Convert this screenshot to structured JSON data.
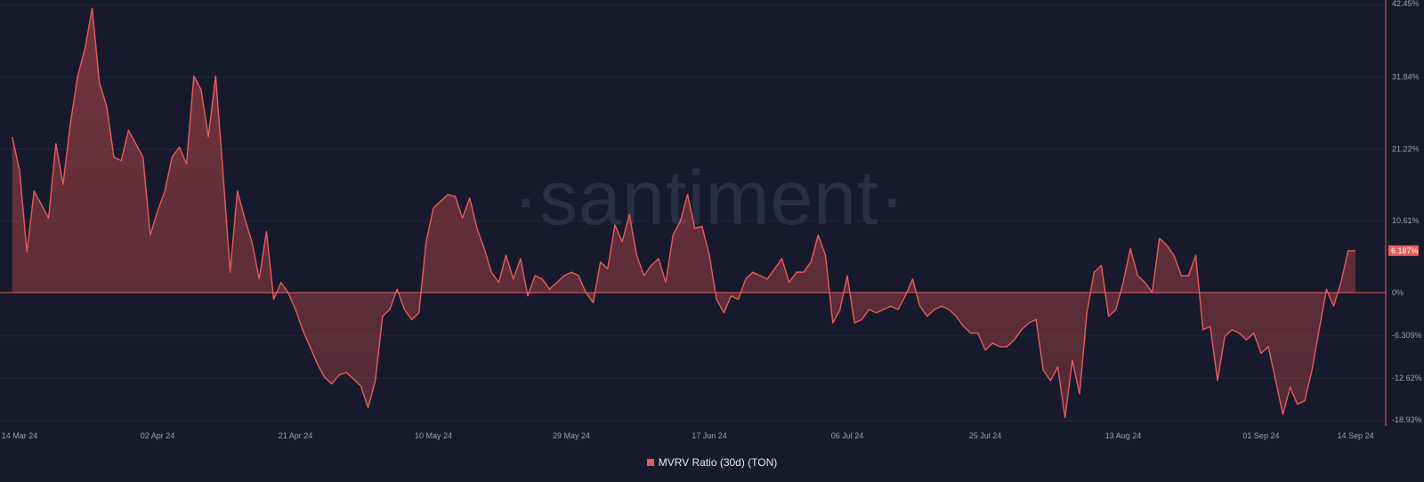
{
  "brand": {
    "watermark": "·santiment·"
  },
  "chart_data": {
    "type": "area",
    "title": "",
    "xlabel": "",
    "ylabel": "",
    "ylim": [
      -18.93,
      42.45
    ],
    "yticks": [
      "42.45%",
      "31.84%",
      "21.22%",
      "10.61%",
      "0%",
      "-6.309%",
      "-12.62%",
      "-18.93%"
    ],
    "ytick_values": [
      42.45,
      31.84,
      21.22,
      10.61,
      0,
      -6.309,
      -12.62,
      -18.93
    ],
    "xticks": [
      "14 Mar 24",
      "02 Apr 24",
      "21 Apr 24",
      "10 May 24",
      "29 May 24",
      "17 Jun 24",
      "06 Jul 24",
      "25 Jul 24",
      "13 Aug 24",
      "01 Sep 24",
      "14 Sep 24"
    ],
    "xtick_dates": [
      "2024-03-14",
      "2024-04-02",
      "2024-04-21",
      "2024-05-10",
      "2024-05-29",
      "2024-06-17",
      "2024-07-06",
      "2024-07-25",
      "2024-08-13",
      "2024-09-01",
      "2024-09-14"
    ],
    "x_start": "2024-03-14",
    "x_end": "2024-09-14",
    "current_value_label": "6.187%",
    "legend": {
      "position": "bottom-center"
    },
    "series": [
      {
        "name": "MVRV Ratio (30d) (TON)",
        "color": "#e85c5c",
        "points": [
          [
            "2024-03-13",
            23.0
          ],
          [
            "2024-03-14",
            18.0
          ],
          [
            "2024-03-15",
            6.0
          ],
          [
            "2024-03-16",
            15.0
          ],
          [
            "2024-03-17",
            13.0
          ],
          [
            "2024-03-18",
            11.0
          ],
          [
            "2024-03-19",
            22.0
          ],
          [
            "2024-03-20",
            16.0
          ],
          [
            "2024-03-21",
            25.0
          ],
          [
            "2024-03-22",
            32.0
          ],
          [
            "2024-03-23",
            36.0
          ],
          [
            "2024-03-24",
            42.0
          ],
          [
            "2024-03-25",
            31.0
          ],
          [
            "2024-03-26",
            27.5
          ],
          [
            "2024-03-27",
            20.0
          ],
          [
            "2024-03-28",
            19.5
          ],
          [
            "2024-03-29",
            24.0
          ],
          [
            "2024-03-30",
            22.0
          ],
          [
            "2024-03-31",
            20.0
          ],
          [
            "2024-04-01",
            8.5
          ],
          [
            "2024-04-02",
            12.0
          ],
          [
            "2024-04-03",
            15.0
          ],
          [
            "2024-04-04",
            20.0
          ],
          [
            "2024-04-05",
            21.5
          ],
          [
            "2024-04-06",
            19.0
          ],
          [
            "2024-04-07",
            32.0
          ],
          [
            "2024-04-08",
            30.0
          ],
          [
            "2024-04-09",
            23.0
          ],
          [
            "2024-04-10",
            32.0
          ],
          [
            "2024-04-11",
            18.0
          ],
          [
            "2024-04-12",
            3.0
          ],
          [
            "2024-04-13",
            15.0
          ],
          [
            "2024-04-14",
            11.0
          ],
          [
            "2024-04-15",
            7.5
          ],
          [
            "2024-04-16",
            2.0
          ],
          [
            "2024-04-17",
            9.0
          ],
          [
            "2024-04-18",
            -1.0
          ],
          [
            "2024-04-19",
            1.5
          ],
          [
            "2024-04-20",
            0.0
          ],
          [
            "2024-04-21",
            -2.5
          ],
          [
            "2024-04-22",
            -5.5
          ],
          [
            "2024-04-23",
            -8.0
          ],
          [
            "2024-04-24",
            -10.5
          ],
          [
            "2024-04-25",
            -12.5
          ],
          [
            "2024-04-26",
            -13.5
          ],
          [
            "2024-04-27",
            -12.2
          ],
          [
            "2024-04-28",
            -11.8
          ],
          [
            "2024-04-29",
            -12.8
          ],
          [
            "2024-04-30",
            -13.8
          ],
          [
            "2024-05-01",
            -17.0
          ],
          [
            "2024-05-02",
            -13.0
          ],
          [
            "2024-05-03",
            -3.5
          ],
          [
            "2024-05-04",
            -2.5
          ],
          [
            "2024-05-05",
            0.5
          ],
          [
            "2024-05-06",
            -2.5
          ],
          [
            "2024-05-07",
            -4.0
          ],
          [
            "2024-05-08",
            -3.0
          ],
          [
            "2024-05-09",
            7.5
          ],
          [
            "2024-05-10",
            12.5
          ],
          [
            "2024-05-11",
            13.5
          ],
          [
            "2024-05-12",
            14.5
          ],
          [
            "2024-05-13",
            14.2
          ],
          [
            "2024-05-14",
            11.0
          ],
          [
            "2024-05-15",
            14.0
          ],
          [
            "2024-05-16",
            9.5
          ],
          [
            "2024-05-17",
            6.5
          ],
          [
            "2024-05-18",
            3.0
          ],
          [
            "2024-05-19",
            1.5
          ],
          [
            "2024-05-20",
            5.5
          ],
          [
            "2024-05-21",
            2.0
          ],
          [
            "2024-05-22",
            5.0
          ],
          [
            "2024-05-23",
            -0.5
          ],
          [
            "2024-05-24",
            2.5
          ],
          [
            "2024-05-25",
            2.0
          ],
          [
            "2024-05-26",
            0.5
          ],
          [
            "2024-05-27",
            1.5
          ],
          [
            "2024-05-28",
            2.5
          ],
          [
            "2024-05-29",
            3.0
          ],
          [
            "2024-05-30",
            2.5
          ],
          [
            "2024-05-31",
            0.0
          ],
          [
            "2024-06-01",
            -1.5
          ],
          [
            "2024-06-02",
            4.5
          ],
          [
            "2024-06-03",
            3.5
          ],
          [
            "2024-06-04",
            10.0
          ],
          [
            "2024-06-05",
            7.5
          ],
          [
            "2024-06-06",
            11.5
          ],
          [
            "2024-06-07",
            5.5
          ],
          [
            "2024-06-08",
            2.5
          ],
          [
            "2024-06-09",
            4.0
          ],
          [
            "2024-06-10",
            5.0
          ],
          [
            "2024-06-11",
            1.5
          ],
          [
            "2024-06-12",
            8.5
          ],
          [
            "2024-06-13",
            10.5
          ],
          [
            "2024-06-14",
            14.5
          ],
          [
            "2024-06-15",
            9.5
          ],
          [
            "2024-06-16",
            9.8
          ],
          [
            "2024-06-17",
            5.5
          ],
          [
            "2024-06-18",
            -1.0
          ],
          [
            "2024-06-19",
            -3.0
          ],
          [
            "2024-06-20",
            -0.5
          ],
          [
            "2024-06-21",
            -1.0
          ],
          [
            "2024-06-22",
            2.0
          ],
          [
            "2024-06-23",
            3.0
          ],
          [
            "2024-06-24",
            2.5
          ],
          [
            "2024-06-25",
            2.0
          ],
          [
            "2024-06-26",
            3.5
          ],
          [
            "2024-06-27",
            5.0
          ],
          [
            "2024-06-28",
            1.5
          ],
          [
            "2024-06-29",
            3.0
          ],
          [
            "2024-06-30",
            3.0
          ],
          [
            "2024-07-01",
            4.5
          ],
          [
            "2024-07-02",
            8.5
          ],
          [
            "2024-07-03",
            5.5
          ],
          [
            "2024-07-04",
            -4.5
          ],
          [
            "2024-07-05",
            -2.5
          ],
          [
            "2024-07-06",
            2.5
          ],
          [
            "2024-07-07",
            -4.5
          ],
          [
            "2024-07-08",
            -4.0
          ],
          [
            "2024-07-09",
            -2.5
          ],
          [
            "2024-07-10",
            -3.0
          ],
          [
            "2024-07-11",
            -2.5
          ],
          [
            "2024-07-12",
            -2.0
          ],
          [
            "2024-07-13",
            -2.5
          ],
          [
            "2024-07-14",
            -0.5
          ],
          [
            "2024-07-15",
            2.0
          ],
          [
            "2024-07-16",
            -2.0
          ],
          [
            "2024-07-17",
            -3.5
          ],
          [
            "2024-07-18",
            -2.5
          ],
          [
            "2024-07-19",
            -2.0
          ],
          [
            "2024-07-20",
            -2.5
          ],
          [
            "2024-07-21",
            -3.5
          ],
          [
            "2024-07-22",
            -5.0
          ],
          [
            "2024-07-23",
            -6.0
          ],
          [
            "2024-07-24",
            -6.0
          ],
          [
            "2024-07-25",
            -8.5
          ],
          [
            "2024-07-26",
            -7.5
          ],
          [
            "2024-07-27",
            -8.0
          ],
          [
            "2024-07-28",
            -8.0
          ],
          [
            "2024-07-29",
            -7.0
          ],
          [
            "2024-07-30",
            -5.5
          ],
          [
            "2024-07-31",
            -4.5
          ],
          [
            "2024-08-01",
            -4.0
          ],
          [
            "2024-08-02",
            -11.5
          ],
          [
            "2024-08-03",
            -13.0
          ],
          [
            "2024-08-04",
            -11.0
          ],
          [
            "2024-08-05",
            -18.5
          ],
          [
            "2024-08-06",
            -10.0
          ],
          [
            "2024-08-07",
            -15.0
          ],
          [
            "2024-08-08",
            -3.0
          ],
          [
            "2024-08-09",
            3.0
          ],
          [
            "2024-08-10",
            4.0
          ],
          [
            "2024-08-11",
            -3.5
          ],
          [
            "2024-08-12",
            -2.5
          ],
          [
            "2024-08-13",
            1.5
          ],
          [
            "2024-08-14",
            6.5
          ],
          [
            "2024-08-15",
            2.5
          ],
          [
            "2024-08-16",
            1.5
          ],
          [
            "2024-08-17",
            0.0
          ],
          [
            "2024-08-18",
            8.0
          ],
          [
            "2024-08-19",
            7.0
          ],
          [
            "2024-08-20",
            5.5
          ],
          [
            "2024-08-21",
            2.5
          ],
          [
            "2024-08-22",
            2.5
          ],
          [
            "2024-08-23",
            5.5
          ],
          [
            "2024-08-24",
            -5.5
          ],
          [
            "2024-08-25",
            -5.0
          ],
          [
            "2024-08-26",
            -13.0
          ],
          [
            "2024-08-27",
            -6.5
          ],
          [
            "2024-08-28",
            -5.5
          ],
          [
            "2024-08-29",
            -6.0
          ],
          [
            "2024-08-30",
            -7.0
          ],
          [
            "2024-08-31",
            -6.0
          ],
          [
            "2024-09-01",
            -9.0
          ],
          [
            "2024-09-02",
            -8.0
          ],
          [
            "2024-09-03",
            -13.0
          ],
          [
            "2024-09-04",
            -18.0
          ],
          [
            "2024-09-05",
            -14.0
          ],
          [
            "2024-09-06",
            -16.5
          ],
          [
            "2024-09-07",
            -16.0
          ],
          [
            "2024-09-08",
            -11.5
          ],
          [
            "2024-09-09",
            -5.5
          ],
          [
            "2024-09-10",
            0.5
          ],
          [
            "2024-09-11",
            -2.0
          ],
          [
            "2024-09-12",
            1.5
          ],
          [
            "2024-09-13",
            6.187
          ],
          [
            "2024-09-14",
            6.187
          ]
        ]
      }
    ]
  }
}
